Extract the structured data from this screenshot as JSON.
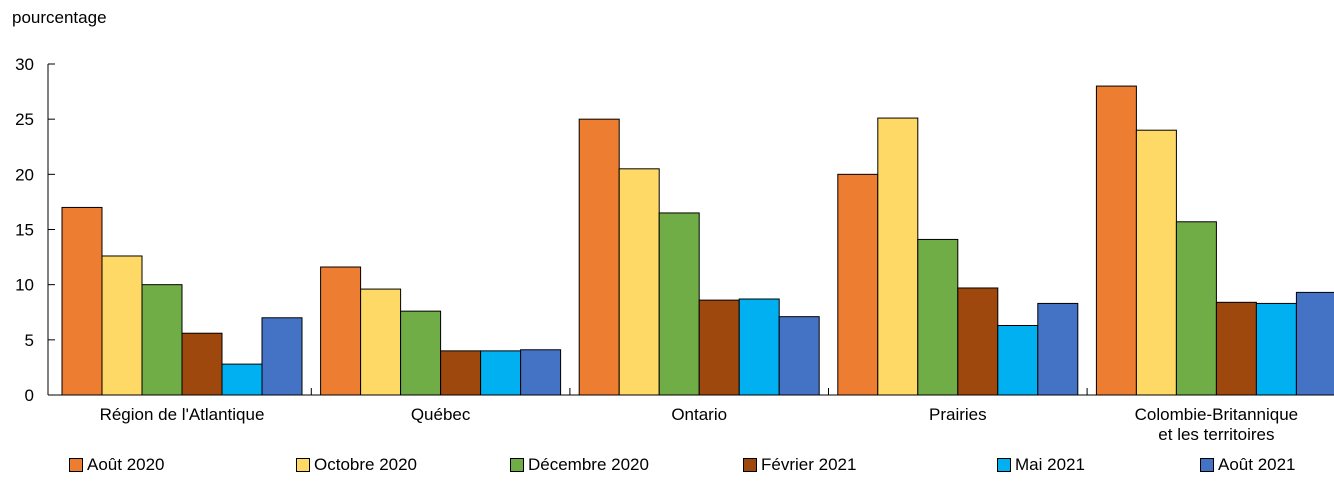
{
  "chart_data": {
    "type": "bar",
    "ylabel": "pourcentage",
    "ylim": [
      0,
      30
    ],
    "yticks": [
      "0",
      "5",
      "10",
      "15",
      "20",
      "25",
      "30"
    ],
    "categories": [
      [
        "Région de l'Atlantique"
      ],
      [
        "Québec"
      ],
      [
        "Ontario"
      ],
      [
        "Prairies"
      ],
      [
        "Colombie-Britannique",
        "et les territoires"
      ]
    ],
    "series": [
      {
        "name": "Août 2020",
        "color": "#ED7D31",
        "values": [
          17.0,
          11.6,
          25.0,
          20.0,
          28.0
        ]
      },
      {
        "name": "Octobre 2020",
        "color": "#FFD966",
        "values": [
          12.6,
          9.6,
          20.5,
          25.1,
          24.0
        ]
      },
      {
        "name": "Décembre 2020",
        "color": "#70AD47",
        "values": [
          10.0,
          7.6,
          16.5,
          14.1,
          15.7
        ]
      },
      {
        "name": "Février 2021",
        "color": "#9E480E",
        "values": [
          5.6,
          4.0,
          8.6,
          9.7,
          8.4
        ]
      },
      {
        "name": "Mai 2021",
        "color": "#00B0F0",
        "values": [
          2.8,
          4.0,
          8.7,
          6.3,
          8.3
        ]
      },
      {
        "name": "Août 2021",
        "color": "#4472C4",
        "values": [
          7.0,
          4.1,
          7.1,
          8.3,
          9.3
        ]
      }
    ],
    "grid": false,
    "legend_position": "bottom"
  }
}
